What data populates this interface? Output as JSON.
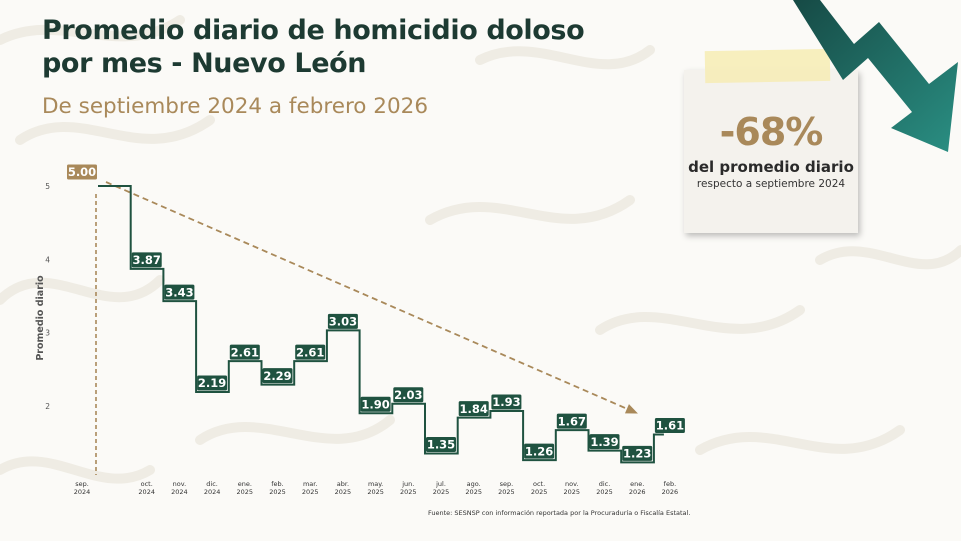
{
  "title_line1": "Promedio diario de homicidio doloso",
  "title_line2": "por mes - Nuevo León",
  "subtitle": "De septiembre 2024 a febrero 2026",
  "card": {
    "percent": "-68%",
    "line1": "del promedio diario",
    "line2": "respecto a septiembre 2024"
  },
  "source": "Fuente: SESNSP con información reportada por la Procuraduría o Fiscalía Estatal.",
  "colors": {
    "primary": "#1f5240",
    "accent": "#a9895a",
    "title": "#1d3a32"
  },
  "chart_data": {
    "type": "line",
    "step": true,
    "ylabel": "Promedio diario",
    "ylim": [
      1.3,
      5.3
    ],
    "yticks": [
      2,
      3,
      4,
      5
    ],
    "x": [
      [
        "sep.",
        "2024"
      ],
      [
        "oct.",
        "2024"
      ],
      [
        "nov.",
        "2024"
      ],
      [
        "dic.",
        "2024"
      ],
      [
        "ene.",
        "2025"
      ],
      [
        "feb.",
        "2025"
      ],
      [
        "mar.",
        "2025"
      ],
      [
        "abr.",
        "2025"
      ],
      [
        "may.",
        "2025"
      ],
      [
        "jun.",
        "2025"
      ],
      [
        "jul.",
        "2025"
      ],
      [
        "ago.",
        "2025"
      ],
      [
        "sep.",
        "2025"
      ],
      [
        "oct.",
        "2025"
      ],
      [
        "nov.",
        "2025"
      ],
      [
        "dic.",
        "2025"
      ],
      [
        "ene.",
        "2026"
      ],
      [
        "feb.",
        "2026"
      ]
    ],
    "values": [
      5.0,
      3.87,
      3.43,
      2.19,
      2.61,
      2.29,
      2.61,
      3.03,
      1.9,
      2.03,
      1.35,
      1.84,
      1.93,
      1.26,
      1.67,
      1.39,
      1.23,
      1.61
    ],
    "labels": [
      "5.00",
      "3.87",
      "3.43",
      "2.19",
      "2.61",
      "2.29",
      "2.61",
      "3.03",
      "1.90",
      "2.03",
      "1.35",
      "1.84",
      "1.93",
      "1.26",
      "1.67",
      "1.39",
      "1.23",
      "1.61"
    ],
    "trend": {
      "from": 0,
      "to": 16
    },
    "grid": false,
    "legend": "none"
  }
}
